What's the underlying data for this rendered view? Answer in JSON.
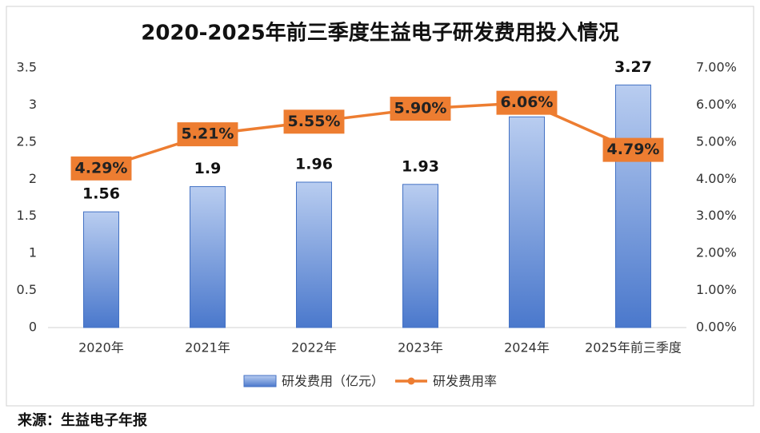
{
  "chart_data": {
    "type": "combo",
    "title": "2020-2025年前三季度生益电子研发费用投入情况",
    "categories": [
      "2020年",
      "2021年",
      "2022年",
      "2023年",
      "2024年",
      "2025年前三季度"
    ],
    "series": [
      {
        "name": "研发费用（亿元）",
        "type": "bar",
        "color": "#4472c4",
        "values": [
          1.56,
          1.9,
          1.96,
          1.93,
          2.84,
          3.27
        ]
      },
      {
        "name": "研发费用率",
        "type": "line",
        "axis": "y2",
        "color": "#ed7d31",
        "values": [
          4.29,
          5.21,
          5.55,
          5.9,
          6.06,
          4.79
        ],
        "value_labels": [
          "4.29%",
          "5.21%",
          "5.55%",
          "5.90%",
          "6.06%",
          "4.79%"
        ]
      }
    ],
    "ylim": [
      0,
      3.5
    ],
    "yticks": [
      0,
      0.5,
      1,
      1.5,
      2,
      2.5,
      3,
      3.5
    ],
    "y2lim": [
      0,
      7
    ],
    "y2ticks": [
      {
        "value": 0,
        "label": "0.00%"
      },
      {
        "value": 1,
        "label": "1.00%"
      },
      {
        "value": 2,
        "label": "2.00%"
      },
      {
        "value": 3,
        "label": "3.00%"
      },
      {
        "value": 4,
        "label": "4.00%"
      },
      {
        "value": 5,
        "label": "5.00%"
      },
      {
        "value": 6,
        "label": "6.00%"
      },
      {
        "value": 7,
        "label": "7.00%"
      }
    ],
    "grid": false,
    "legend": "bottom",
    "source": "来源：生益电子年报"
  }
}
